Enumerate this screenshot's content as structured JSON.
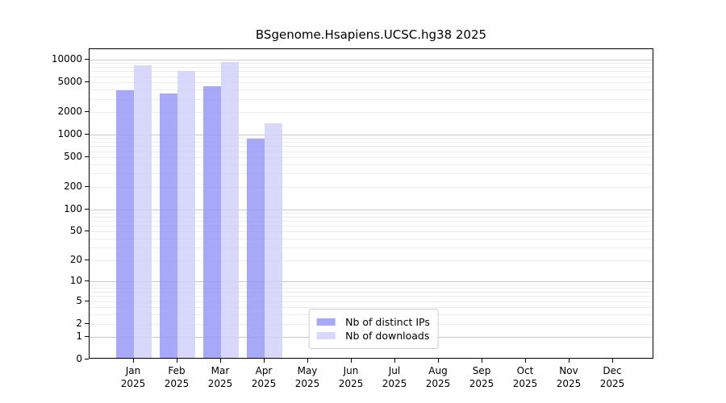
{
  "chart_data": {
    "type": "bar",
    "title": "BSgenome.Hsapiens.UCSC.hg38 2025",
    "categories": [
      "Jan",
      "Feb",
      "Mar",
      "Apr",
      "May",
      "Jun",
      "Jul",
      "Aug",
      "Sep",
      "Oct",
      "Nov",
      "Dec"
    ],
    "year_label": "2025",
    "series": [
      {
        "name": "Nb of distinct IPs",
        "color": "rgba(153,153,247,0.85)",
        "values": [
          3700,
          3350,
          4200,
          850,
          null,
          null,
          null,
          null,
          null,
          null,
          null,
          null
        ]
      },
      {
        "name": "Nb of downloads",
        "color": "rgba(209,209,250,0.85)",
        "values": [
          8000,
          6700,
          8850,
          1330,
          null,
          null,
          null,
          null,
          null,
          null,
          null,
          null
        ]
      }
    ],
    "xlabel": "",
    "ylabel": "",
    "y_scale": "log1p",
    "ylim": [
      0,
      13800
    ],
    "y_ticks": [
      0,
      1,
      2,
      5,
      10,
      20,
      50,
      100,
      200,
      500,
      1000,
      2000,
      5000,
      10000
    ],
    "grid": {
      "major_at": [
        1,
        10,
        100,
        1000,
        10000
      ],
      "major_color": "#c8c8c8",
      "minor_color": "#ececec"
    },
    "legend_position": "lower center"
  }
}
